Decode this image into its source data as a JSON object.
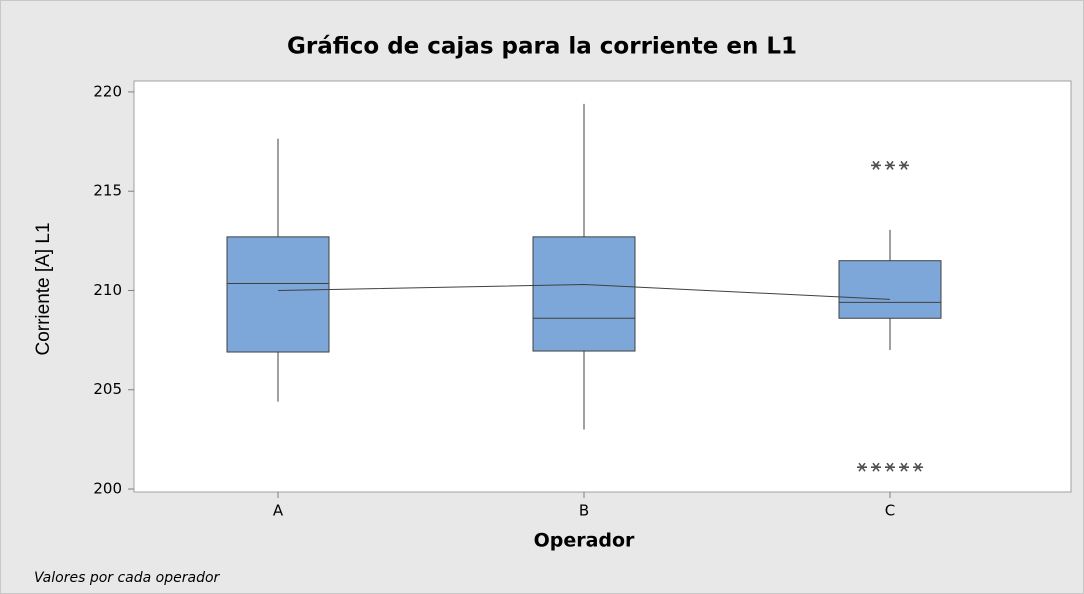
{
  "chart_data": {
    "type": "box",
    "title": "Gráfico de cajas para la corriente en L1",
    "x_label": "Operador",
    "y_label": "Corriente [A]  L1",
    "footnote": "Valores por cada operador",
    "categories": [
      "A",
      "B",
      "C"
    ],
    "color": "#7da7d9",
    "boxes": [
      {
        "min": 204.4,
        "q1": 206.9,
        "median": 210.35,
        "q3": 212.7,
        "max": 217.65,
        "mean": 210.0,
        "outliers": []
      },
      {
        "min": 203.0,
        "q1": 206.95,
        "median": 208.6,
        "q3": 212.7,
        "max": 219.4,
        "mean": 210.3,
        "outliers": []
      },
      {
        "min": 207.0,
        "q1": 208.6,
        "median": 209.4,
        "q3": 211.5,
        "max": 213.05,
        "mean": 209.55,
        "outliers": [
          216.3,
          216.3,
          216.3,
          201.1,
          201.1,
          201.1,
          201.1,
          201.1
        ]
      }
    ],
    "ylim": [
      199.85,
      220.55
    ],
    "yticks": [
      200,
      205,
      210,
      215,
      220
    ]
  }
}
